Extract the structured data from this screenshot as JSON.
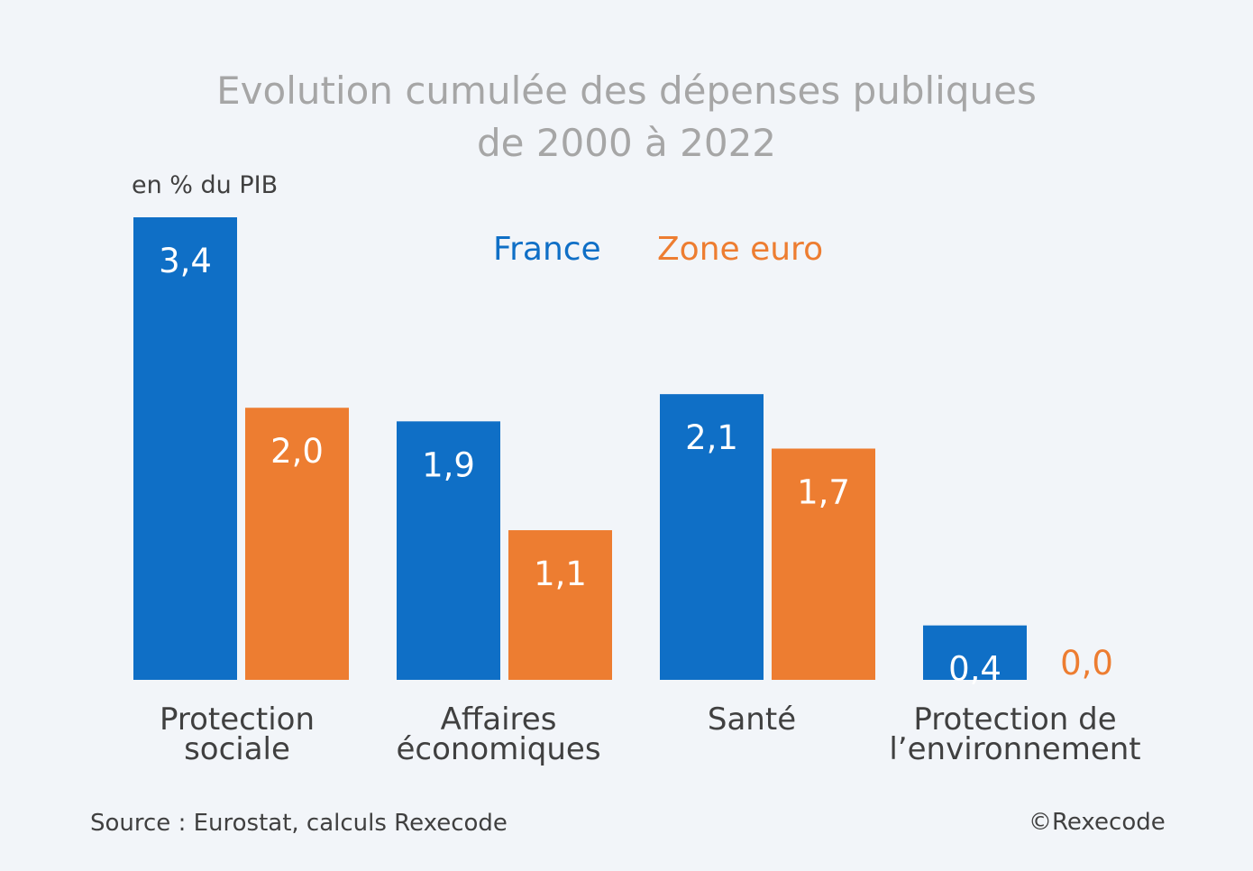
{
  "chart_data": {
    "type": "bar",
    "title": [
      "Evolution cumulée des dépenses publiques",
      "de 2000 à 2022"
    ],
    "ylabel": "en % du PIB",
    "categories": [
      [
        "Protection",
        "sociale"
      ],
      [
        "Affaires",
        "économiques"
      ],
      [
        "Santé"
      ],
      [
        "Protection de",
        "l’environnement"
      ]
    ],
    "series": [
      {
        "name": "France",
        "color": "#0f6fc6",
        "values": [
          3.4,
          1.9,
          2.1,
          0.4
        ],
        "labels": [
          "3,4",
          "1,9",
          "2,1",
          "0,4"
        ]
      },
      {
        "name": "Zone euro",
        "color": "#ed7d31",
        "values": [
          2.0,
          1.1,
          1.7,
          0.0
        ],
        "labels": [
          "2,0",
          "1,1",
          "1,7",
          "0,0"
        ]
      }
    ],
    "ylim": [
      0,
      3.4
    ],
    "grid": false,
    "legend": "top-center"
  },
  "footer": {
    "source": "Source : Eurostat, calculs Rexecode",
    "copyright": "©Rexecode"
  }
}
